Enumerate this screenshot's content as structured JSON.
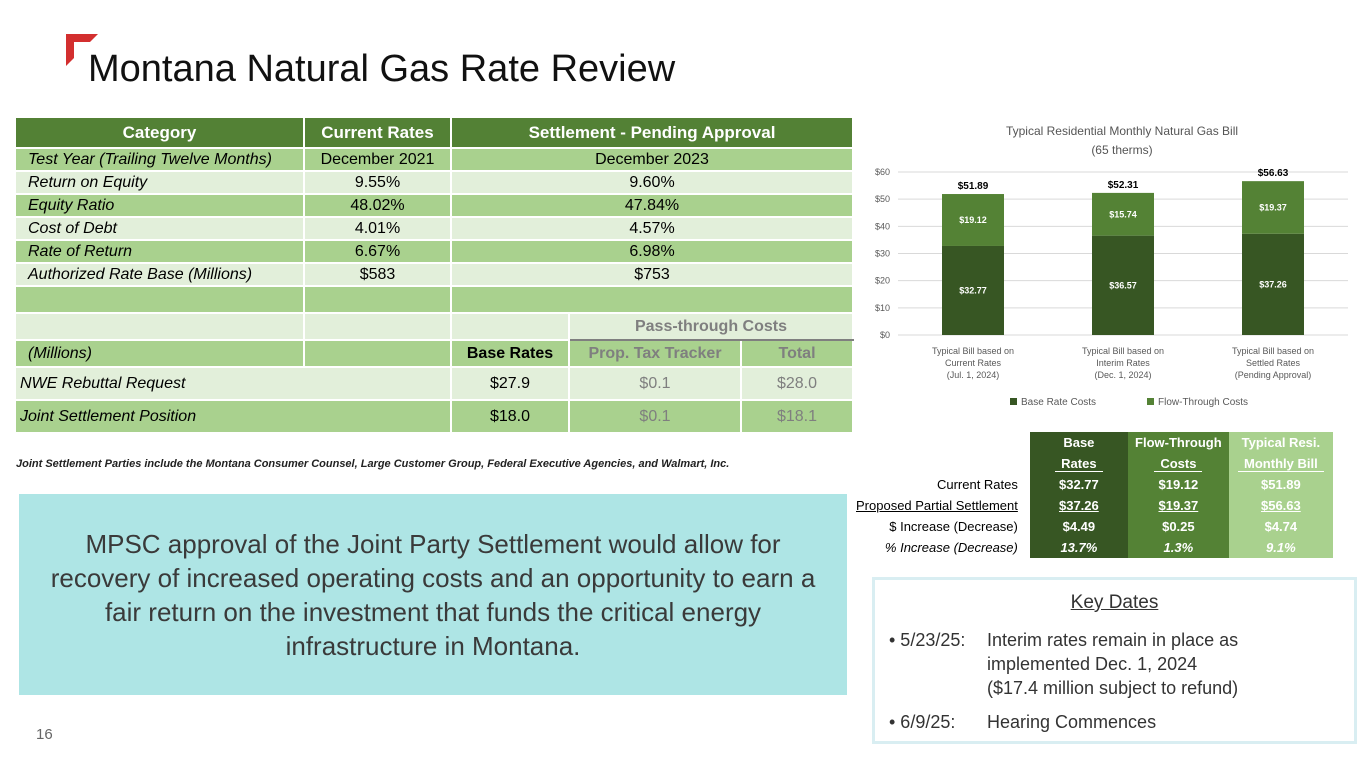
{
  "title": "Montana Natural Gas Rate Review",
  "page_number": "16",
  "rate_table": {
    "headers": [
      "Category",
      "Current Rates",
      "Settlement - Pending Approval"
    ],
    "rows": [
      {
        "category": "Test Year (Trailing Twelve Months)",
        "current": "December 2021",
        "settlement": "December 2023"
      },
      {
        "category": "Return on Equity",
        "current": "9.55%",
        "settlement": "9.60%"
      },
      {
        "category": "Equity Ratio",
        "current": "48.02%",
        "settlement": "47.84%"
      },
      {
        "category": "Cost of Debt",
        "current": "4.01%",
        "settlement": "4.57%"
      },
      {
        "category": "Rate of Return",
        "current": "6.67%",
        "settlement": "6.98%"
      },
      {
        "category": "Authorized Rate Base (Millions)",
        "current": "$583",
        "settlement": "$753"
      }
    ],
    "pass_through_header": "Pass-through Costs",
    "millions_label": "(Millions)",
    "sub_headers": [
      "Base Rates",
      "Prop. Tax Tracker",
      "Total"
    ],
    "request_rows": [
      {
        "label": "NWE Rebuttal Request",
        "base": "$27.9",
        "tracker": "$0.1",
        "total": "$28.0"
      },
      {
        "label": "Joint Settlement Position",
        "base": "$18.0",
        "tracker": "$0.1",
        "total": "$18.1"
      }
    ]
  },
  "footnote": "Joint Settlement Parties include the Montana Consumer Counsel, Large Customer Group, Federal Executive Agencies, and Walmart, Inc.",
  "callout": "MPSC approval of the Joint Party Settlement would allow for recovery of increased operating costs and an opportunity to earn a fair return on the investment that funds the critical energy infrastructure in Montana.",
  "chart_data": {
    "type": "bar",
    "stacked": true,
    "title": "Typical Residential Monthly Natural Gas Bill",
    "subtitle": "(65 therms)",
    "categories": [
      [
        "Typical Bill based on",
        "Current Rates",
        "(Jul. 1, 2024)"
      ],
      [
        "Typical Bill based on",
        "Interim Rates",
        "(Dec. 1, 2024)"
      ],
      [
        "Typical Bill based on",
        "Settled Rates",
        "(Pending Approval)"
      ]
    ],
    "series": [
      {
        "name": "Base Rate Costs",
        "values": [
          32.77,
          36.57,
          37.26
        ],
        "labels": [
          "$32.77",
          "$36.57",
          "$37.26"
        ],
        "color": "#375623"
      },
      {
        "name": "Flow-Through Costs",
        "values": [
          19.12,
          15.74,
          19.37
        ],
        "labels": [
          "$19.12",
          "$15.74",
          "$19.37"
        ],
        "color": "#548235"
      }
    ],
    "totals": [
      "$51.89",
      "$52.31",
      "$56.63"
    ],
    "yticks": [
      "$0",
      "$10",
      "$20",
      "$30",
      "$40",
      "$50",
      "$60"
    ],
    "ylim": [
      0,
      60
    ],
    "grid": true,
    "legend": "bottom"
  },
  "summary_table": {
    "headers": [
      [
        "Base",
        "Rates"
      ],
      [
        "Flow-Through",
        "Costs"
      ],
      [
        "Typical Resi.",
        "Monthly Bill"
      ]
    ],
    "rows": [
      {
        "label": "Current Rates",
        "values": [
          "$32.77",
          "$19.12",
          "$51.89"
        ]
      },
      {
        "label": "Proposed Partial Settlement",
        "values": [
          "$37.26",
          "$19.37",
          "$56.63"
        ]
      },
      {
        "label": "$ Increase (Decrease)",
        "values": [
          "$4.49",
          "$0.25",
          "$4.74"
        ]
      },
      {
        "label": "% Increase (Decrease)",
        "values": [
          "13.7%",
          "1.3%",
          "9.1%"
        ]
      }
    ]
  },
  "key_dates": {
    "title": "Key Dates",
    "items": [
      {
        "date": "• 5/23/25:",
        "lines": [
          "Interim rates remain in place as",
          "implemented Dec. 1, 2024",
          "($17.4 million subject to refund)"
        ]
      },
      {
        "date": "• 6/9/25:",
        "lines": [
          "Hearing Commences"
        ]
      }
    ]
  },
  "colors": {
    "dark_green": "#375623",
    "mid_green": "#548235",
    "header_green": "#538135",
    "light_green": "#a9d18e",
    "pale_green": "#e2efda",
    "teal": "#aee5e5",
    "accent_red": "#d32f2f"
  }
}
